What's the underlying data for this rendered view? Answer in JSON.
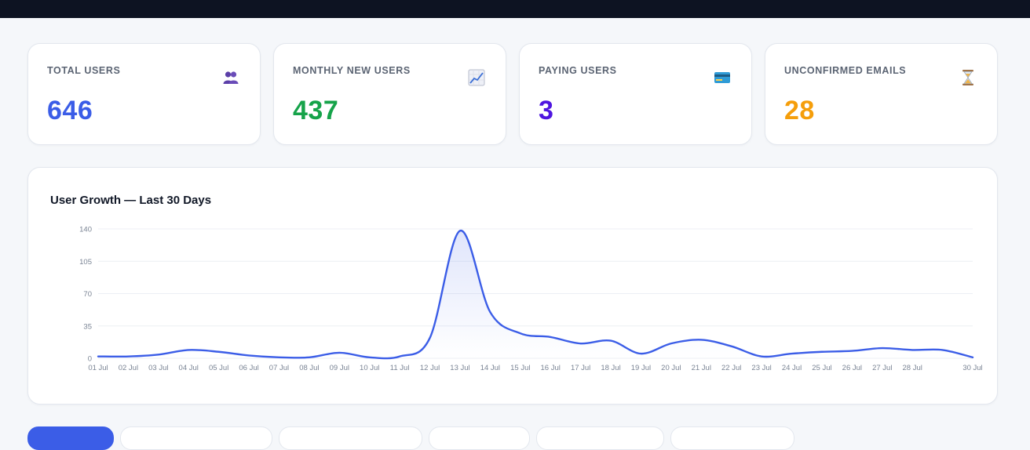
{
  "stats": [
    {
      "label": "TOTAL USERS",
      "value": "646",
      "icon": "users-icon",
      "color": "#3b5de7"
    },
    {
      "label": "MONTHLY NEW USERS",
      "value": "437",
      "icon": "chart-increasing-icon",
      "color": "#16a34a"
    },
    {
      "label": "PAYING USERS",
      "value": "3",
      "icon": "credit-card-icon",
      "color": "#4f16e0"
    },
    {
      "label": "UNCONFIRMED EMAILS",
      "value": "28",
      "icon": "hourglass-icon",
      "color": "#f59e0b"
    }
  ],
  "chart": {
    "title": "User Growth — Last 30 Days"
  },
  "chart_data": {
    "type": "area",
    "title": "User Growth — Last 30 Days",
    "line_color": "#3b5de7",
    "ylim": [
      0,
      140
    ],
    "yticks": [
      0,
      35,
      70,
      105,
      140
    ],
    "x_tick_labels": [
      "01 Jul",
      "02 Jul",
      "03 Jul",
      "04 Jul",
      "05 Jul",
      "06 Jul",
      "07 Jul",
      "08 Jul",
      "09 Jul",
      "10 Jul",
      "11 Jul",
      "12 Jul",
      "13 Jul",
      "14 Jul",
      "15 Jul",
      "16 Jul",
      "17 Jul",
      "18 Jul",
      "19 Jul",
      "20 Jul",
      "21 Jul",
      "22 Jul",
      "23 Jul",
      "24 Jul",
      "25 Jul",
      "26 Jul",
      "27 Jul",
      "28 Jul",
      "30 Jul"
    ],
    "x": [
      "01 Jul",
      "02 Jul",
      "03 Jul",
      "04 Jul",
      "05 Jul",
      "06 Jul",
      "07 Jul",
      "08 Jul",
      "09 Jul",
      "10 Jul",
      "11 Jul",
      "12 Jul",
      "13 Jul",
      "14 Jul",
      "15 Jul",
      "16 Jul",
      "17 Jul",
      "18 Jul",
      "19 Jul",
      "20 Jul",
      "21 Jul",
      "22 Jul",
      "23 Jul",
      "24 Jul",
      "25 Jul",
      "26 Jul",
      "27 Jul",
      "28 Jul",
      "29 Jul",
      "30 Jul"
    ],
    "values": [
      2,
      2,
      4,
      9,
      7,
      3,
      1,
      1,
      6,
      1,
      2,
      22,
      138,
      50,
      27,
      23,
      16,
      19,
      5,
      16,
      20,
      13,
      2,
      5,
      7,
      8,
      11,
      9,
      9,
      1
    ],
    "grid": true
  }
}
